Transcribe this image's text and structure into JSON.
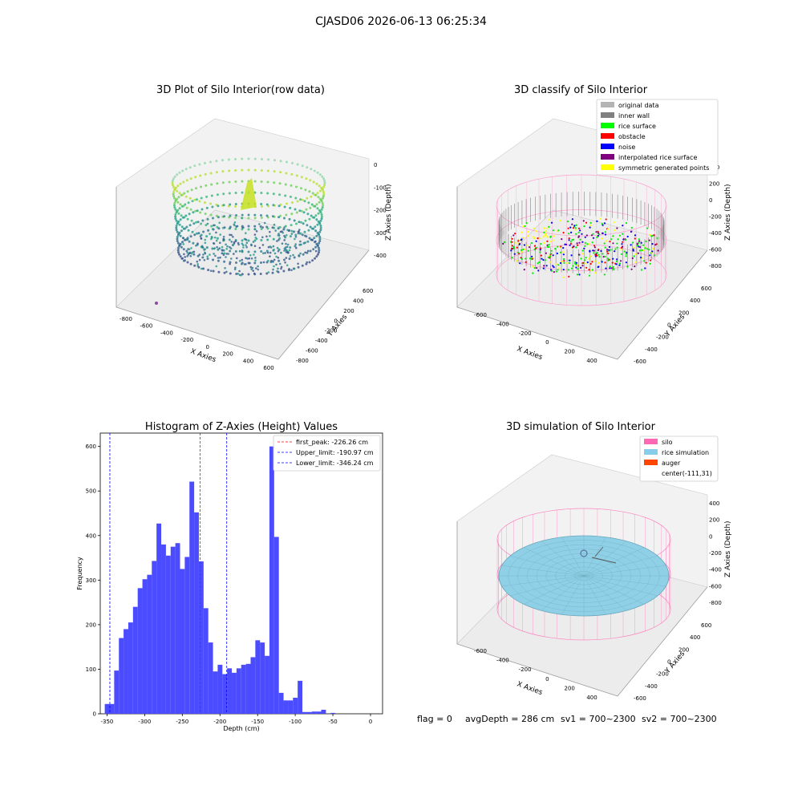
{
  "figure": {
    "suptitle": "CJASD06 2026-06-13 06:25:34",
    "footer": {
      "flag": "flag = 0",
      "avg_depth": "avgDepth = 286 cm",
      "sv1": "sv1 = 700~2300",
      "sv2": "sv2 = 700~2300"
    }
  },
  "panels": {
    "raw": {
      "title": "3D Plot of Silo Interior(row data)",
      "xlabel": "X Axies",
      "ylabel": "Y Axies",
      "zlabel": "Z Axies (Depth)",
      "xticks": [
        "-800",
        "-600",
        "-400",
        "-200",
        "0",
        "200",
        "400",
        "600"
      ],
      "yticks": [
        "600",
        "400",
        "200",
        "0",
        "-200",
        "-400",
        "-600",
        "-800"
      ],
      "zticks": [
        "0",
        "-100",
        "-200",
        "-300",
        "-400"
      ]
    },
    "classify": {
      "title": "3D classify of Silo Interior",
      "xlabel": "X Axies",
      "ylabel": "Y Axies",
      "zlabel": "Z Axies (Depth)",
      "xticks": [
        "-600",
        "-400",
        "-200",
        "0",
        "200",
        "400"
      ],
      "yticks": [
        "600",
        "400",
        "200",
        "0",
        "-200",
        "-400",
        "-600"
      ],
      "zticks": [
        "400",
        "200",
        "0",
        "-200",
        "-400",
        "-600",
        "-800"
      ],
      "legend": [
        {
          "label": "original data",
          "color": "#b4b4b4"
        },
        {
          "label": "inner wall",
          "color": "#808080"
        },
        {
          "label": "rice surface",
          "color": "#00ff00"
        },
        {
          "label": "obstacle",
          "color": "#ff0000"
        },
        {
          "label": "noise",
          "color": "#0000ff"
        },
        {
          "label": "interpolated rice surface",
          "color": "#800080"
        },
        {
          "label": "symmetric generated points",
          "color": "#ffff00"
        }
      ]
    },
    "simulation": {
      "title": "3D simulation of Silo Interior",
      "xlabel": "X Axies",
      "ylabel": "Y Axies",
      "zlabel": "Z Axies (Depth)",
      "xticks": [
        "-600",
        "-400",
        "-200",
        "0",
        "200",
        "400"
      ],
      "yticks": [
        "600",
        "400",
        "200",
        "0",
        "-200",
        "-400",
        "-600"
      ],
      "zticks": [
        "400",
        "200",
        "0",
        "-200",
        "-400",
        "-600",
        "-800"
      ],
      "legend": [
        {
          "label": "silo",
          "color": "#ff69b4"
        },
        {
          "label": "rice simulation",
          "color": "#87ceeb"
        },
        {
          "label": "auger",
          "color": "#ff4500"
        },
        {
          "label": "center(-111,31)",
          "color": ""
        }
      ]
    }
  },
  "chart_data": {
    "type": "bar",
    "title": "Histogram of Z-Axies (Height) Values",
    "xlabel": "Depth (cm)",
    "ylabel": "Frequency",
    "xlim": [
      -359,
      16
    ],
    "ylim": [
      0,
      630
    ],
    "xticks": [
      -350,
      -300,
      -250,
      -200,
      -150,
      -100,
      -50,
      0
    ],
    "yticks": [
      0,
      100,
      200,
      300,
      400,
      500,
      600
    ],
    "bin_start": -353,
    "bin_width": 6.25,
    "values": [
      22,
      22,
      97,
      170,
      190,
      205,
      240,
      282,
      302,
      312,
      343,
      427,
      380,
      355,
      375,
      383,
      325,
      352,
      521,
      452,
      342,
      237,
      160,
      95,
      110,
      89,
      102,
      92,
      102,
      110,
      112,
      127,
      165,
      160,
      130,
      600,
      397,
      47,
      30,
      30,
      36,
      74,
      4,
      4,
      5,
      5,
      9,
      0,
      2
    ],
    "lines": [
      {
        "label": "first_peak: -226.26 cm",
        "x": -226.26,
        "color": "#ff0000"
      },
      {
        "label": "Upper_limit: -190.97 cm",
        "x": -190.97,
        "color": "#0000ff"
      },
      {
        "label": "Lower_limit: -346.24 cm",
        "x": -346.24,
        "color": "#0000ff"
      }
    ],
    "bar_color": "#4b4bff"
  }
}
